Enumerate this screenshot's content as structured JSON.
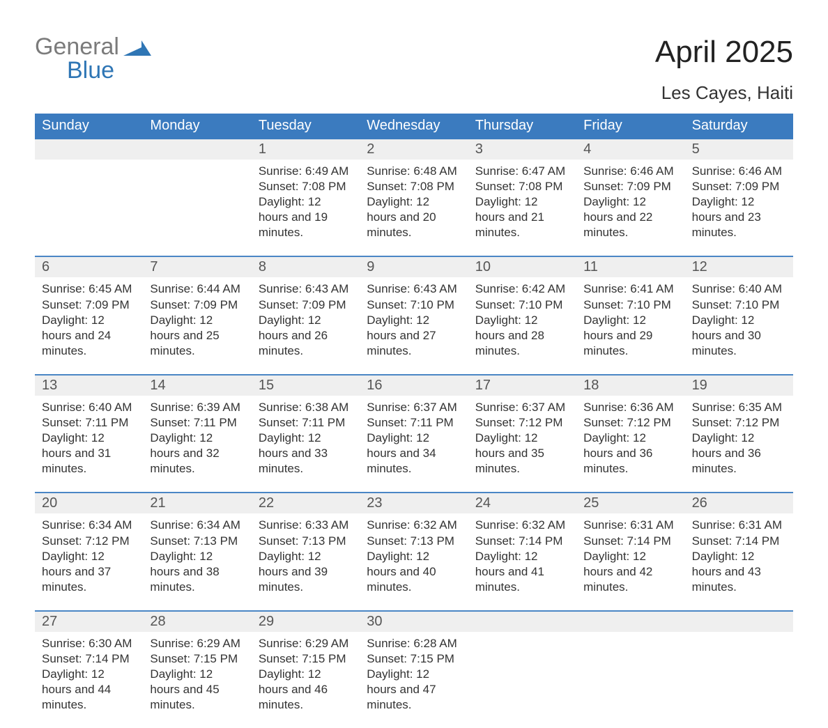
{
  "logo": {
    "word1": "General",
    "word2": "Blue"
  },
  "title": "April 2025",
  "subtitle": "Les Cayes, Haiti",
  "colors": {
    "header_bg": "#3b7bbf",
    "row_separator": "#4a86c5",
    "daynum_bg": "#efefef",
    "logo_grey": "#7b7b7b",
    "logo_blue": "#2f76b5",
    "page_bg": "#ffffff",
    "text": "#333333"
  },
  "calendar": {
    "type": "table",
    "columns": [
      "Sunday",
      "Monday",
      "Tuesday",
      "Wednesday",
      "Thursday",
      "Friday",
      "Saturday"
    ],
    "first_weekday_index": 2,
    "days": [
      {
        "n": 1,
        "sunrise": "6:49 AM",
        "sunset": "7:08 PM",
        "daylight": "12 hours and 19 minutes."
      },
      {
        "n": 2,
        "sunrise": "6:48 AM",
        "sunset": "7:08 PM",
        "daylight": "12 hours and 20 minutes."
      },
      {
        "n": 3,
        "sunrise": "6:47 AM",
        "sunset": "7:08 PM",
        "daylight": "12 hours and 21 minutes."
      },
      {
        "n": 4,
        "sunrise": "6:46 AM",
        "sunset": "7:09 PM",
        "daylight": "12 hours and 22 minutes."
      },
      {
        "n": 5,
        "sunrise": "6:46 AM",
        "sunset": "7:09 PM",
        "daylight": "12 hours and 23 minutes."
      },
      {
        "n": 6,
        "sunrise": "6:45 AM",
        "sunset": "7:09 PM",
        "daylight": "12 hours and 24 minutes."
      },
      {
        "n": 7,
        "sunrise": "6:44 AM",
        "sunset": "7:09 PM",
        "daylight": "12 hours and 25 minutes."
      },
      {
        "n": 8,
        "sunrise": "6:43 AM",
        "sunset": "7:09 PM",
        "daylight": "12 hours and 26 minutes."
      },
      {
        "n": 9,
        "sunrise": "6:43 AM",
        "sunset": "7:10 PM",
        "daylight": "12 hours and 27 minutes."
      },
      {
        "n": 10,
        "sunrise": "6:42 AM",
        "sunset": "7:10 PM",
        "daylight": "12 hours and 28 minutes."
      },
      {
        "n": 11,
        "sunrise": "6:41 AM",
        "sunset": "7:10 PM",
        "daylight": "12 hours and 29 minutes."
      },
      {
        "n": 12,
        "sunrise": "6:40 AM",
        "sunset": "7:10 PM",
        "daylight": "12 hours and 30 minutes."
      },
      {
        "n": 13,
        "sunrise": "6:40 AM",
        "sunset": "7:11 PM",
        "daylight": "12 hours and 31 minutes."
      },
      {
        "n": 14,
        "sunrise": "6:39 AM",
        "sunset": "7:11 PM",
        "daylight": "12 hours and 32 minutes."
      },
      {
        "n": 15,
        "sunrise": "6:38 AM",
        "sunset": "7:11 PM",
        "daylight": "12 hours and 33 minutes."
      },
      {
        "n": 16,
        "sunrise": "6:37 AM",
        "sunset": "7:11 PM",
        "daylight": "12 hours and 34 minutes."
      },
      {
        "n": 17,
        "sunrise": "6:37 AM",
        "sunset": "7:12 PM",
        "daylight": "12 hours and 35 minutes."
      },
      {
        "n": 18,
        "sunrise": "6:36 AM",
        "sunset": "7:12 PM",
        "daylight": "12 hours and 36 minutes."
      },
      {
        "n": 19,
        "sunrise": "6:35 AM",
        "sunset": "7:12 PM",
        "daylight": "12 hours and 36 minutes."
      },
      {
        "n": 20,
        "sunrise": "6:34 AM",
        "sunset": "7:12 PM",
        "daylight": "12 hours and 37 minutes."
      },
      {
        "n": 21,
        "sunrise": "6:34 AM",
        "sunset": "7:13 PM",
        "daylight": "12 hours and 38 minutes."
      },
      {
        "n": 22,
        "sunrise": "6:33 AM",
        "sunset": "7:13 PM",
        "daylight": "12 hours and 39 minutes."
      },
      {
        "n": 23,
        "sunrise": "6:32 AM",
        "sunset": "7:13 PM",
        "daylight": "12 hours and 40 minutes."
      },
      {
        "n": 24,
        "sunrise": "6:32 AM",
        "sunset": "7:14 PM",
        "daylight": "12 hours and 41 minutes."
      },
      {
        "n": 25,
        "sunrise": "6:31 AM",
        "sunset": "7:14 PM",
        "daylight": "12 hours and 42 minutes."
      },
      {
        "n": 26,
        "sunrise": "6:31 AM",
        "sunset": "7:14 PM",
        "daylight": "12 hours and 43 minutes."
      },
      {
        "n": 27,
        "sunrise": "6:30 AM",
        "sunset": "7:14 PM",
        "daylight": "12 hours and 44 minutes."
      },
      {
        "n": 28,
        "sunrise": "6:29 AM",
        "sunset": "7:15 PM",
        "daylight": "12 hours and 45 minutes."
      },
      {
        "n": 29,
        "sunrise": "6:29 AM",
        "sunset": "7:15 PM",
        "daylight": "12 hours and 46 minutes."
      },
      {
        "n": 30,
        "sunrise": "6:28 AM",
        "sunset": "7:15 PM",
        "daylight": "12 hours and 47 minutes."
      }
    ],
    "labels": {
      "sunrise": "Sunrise:",
      "sunset": "Sunset:",
      "daylight": "Daylight:"
    }
  }
}
